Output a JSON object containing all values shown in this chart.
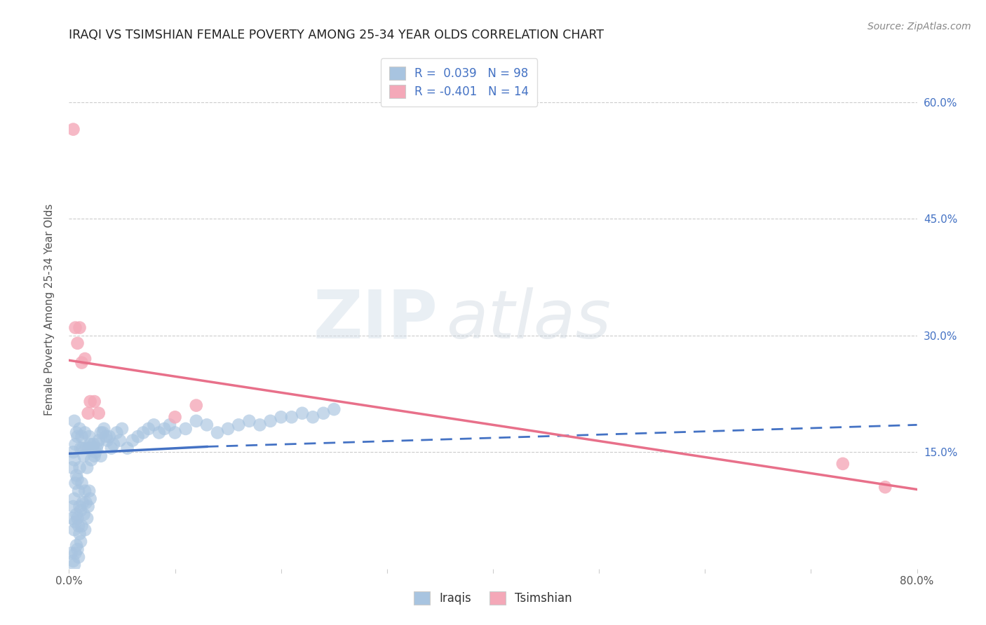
{
  "title": "IRAQI VS TSIMSHIAN FEMALE POVERTY AMONG 25-34 YEAR OLDS CORRELATION CHART",
  "source": "Source: ZipAtlas.com",
  "ylabel": "Female Poverty Among 25-34 Year Olds",
  "xlim": [
    0.0,
    0.8
  ],
  "ylim": [
    0.0,
    0.667
  ],
  "xticks": [
    0.0,
    0.1,
    0.2,
    0.3,
    0.4,
    0.5,
    0.6,
    0.7,
    0.8
  ],
  "xticklabels": [
    "0.0%",
    "",
    "",
    "",
    "",
    "",
    "",
    "",
    "80.0%"
  ],
  "yticks": [
    0.0,
    0.15,
    0.3,
    0.45,
    0.6
  ],
  "ytick_labels_right": [
    "",
    "15.0%",
    "30.0%",
    "45.0%",
    "60.0%"
  ],
  "legend_r_iraqi": "0.039",
  "legend_n_iraqi": "98",
  "legend_r_tsimshian": "-0.401",
  "legend_n_tsimshian": "14",
  "iraqi_color": "#a8c4e0",
  "tsimshian_color": "#f4a8b8",
  "iraqi_line_color": "#4472c4",
  "tsimshian_line_color": "#e8708a",
  "background_color": "#ffffff",
  "iraqi_x": [
    0.002,
    0.003,
    0.003,
    0.004,
    0.004,
    0.004,
    0.005,
    0.005,
    0.005,
    0.005,
    0.005,
    0.006,
    0.006,
    0.006,
    0.006,
    0.007,
    0.007,
    0.007,
    0.007,
    0.008,
    0.008,
    0.008,
    0.008,
    0.009,
    0.009,
    0.009,
    0.01,
    0.01,
    0.01,
    0.01,
    0.011,
    0.011,
    0.011,
    0.012,
    0.012,
    0.012,
    0.013,
    0.013,
    0.014,
    0.014,
    0.015,
    0.015,
    0.015,
    0.016,
    0.016,
    0.017,
    0.017,
    0.018,
    0.018,
    0.019,
    0.019,
    0.02,
    0.02,
    0.021,
    0.022,
    0.023,
    0.024,
    0.025,
    0.026,
    0.027,
    0.028,
    0.03,
    0.03,
    0.032,
    0.033,
    0.035,
    0.036,
    0.038,
    0.04,
    0.042,
    0.045,
    0.048,
    0.05,
    0.055,
    0.06,
    0.065,
    0.07,
    0.075,
    0.08,
    0.085,
    0.09,
    0.095,
    0.1,
    0.11,
    0.12,
    0.13,
    0.14,
    0.15,
    0.16,
    0.17,
    0.18,
    0.19,
    0.2,
    0.21,
    0.22,
    0.23,
    0.24,
    0.25
  ],
  "iraqi_y": [
    0.02,
    0.065,
    0.13,
    0.01,
    0.08,
    0.15,
    0.005,
    0.05,
    0.09,
    0.14,
    0.19,
    0.02,
    0.06,
    0.11,
    0.16,
    0.03,
    0.07,
    0.12,
    0.175,
    0.025,
    0.065,
    0.115,
    0.17,
    0.015,
    0.055,
    0.1,
    0.045,
    0.08,
    0.13,
    0.18,
    0.035,
    0.075,
    0.155,
    0.055,
    0.11,
    0.17,
    0.085,
    0.155,
    0.07,
    0.145,
    0.05,
    0.1,
    0.175,
    0.085,
    0.155,
    0.065,
    0.13,
    0.08,
    0.155,
    0.1,
    0.17,
    0.09,
    0.16,
    0.14,
    0.155,
    0.16,
    0.145,
    0.15,
    0.155,
    0.16,
    0.165,
    0.145,
    0.175,
    0.175,
    0.18,
    0.17,
    0.165,
    0.17,
    0.155,
    0.16,
    0.175,
    0.165,
    0.18,
    0.155,
    0.165,
    0.17,
    0.175,
    0.18,
    0.185,
    0.175,
    0.18,
    0.185,
    0.175,
    0.18,
    0.19,
    0.185,
    0.175,
    0.18,
    0.185,
    0.19,
    0.185,
    0.19,
    0.195,
    0.195,
    0.2,
    0.195,
    0.2,
    0.205
  ],
  "tsimshian_x": [
    0.004,
    0.006,
    0.008,
    0.01,
    0.012,
    0.015,
    0.018,
    0.02,
    0.024,
    0.028,
    0.1,
    0.12,
    0.73,
    0.77
  ],
  "tsimshian_y": [
    0.565,
    0.31,
    0.29,
    0.31,
    0.265,
    0.27,
    0.2,
    0.215,
    0.215,
    0.2,
    0.195,
    0.21,
    0.135,
    0.105
  ],
  "iraqi_trend_x": [
    0.0,
    0.13,
    0.8
  ],
  "iraqi_trend_y": [
    0.148,
    0.157,
    0.185
  ],
  "iraqi_trend_solid_end": 0.13,
  "tsimshian_trend_x": [
    0.0,
    0.8
  ],
  "tsimshian_trend_y": [
    0.268,
    0.102
  ]
}
